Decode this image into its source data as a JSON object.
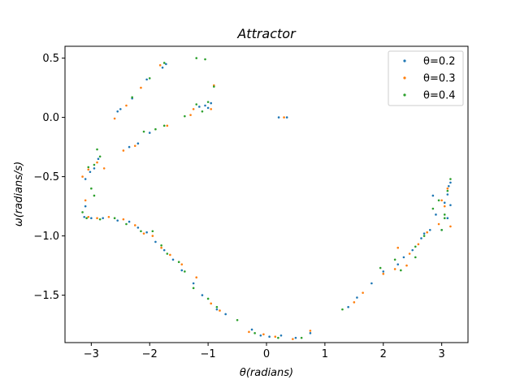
{
  "chart_data": {
    "type": "scatter",
    "title": "Attractor",
    "xlabel": "θ(radians)",
    "ylabel": "ω(radians/s)",
    "xlim": [
      -3.45,
      3.45
    ],
    "ylim": [
      -1.9,
      0.6
    ],
    "xticks": [
      -3,
      -2,
      -1,
      0,
      1,
      2,
      3
    ],
    "yticks": [
      0.5,
      0.0,
      -0.5,
      -1.0,
      -1.5
    ],
    "xtick_labels": [
      "−3",
      "−2",
      "−1",
      "0",
      "1",
      "2",
      "3"
    ],
    "ytick_labels": [
      "0.5",
      "0.0",
      "−0.5",
      "−1.0",
      "−1.5"
    ],
    "legend_position": "top-right",
    "series": [
      {
        "name": "θ=0.2",
        "color": "#1f77b4",
        "points": [
          [
            0.21,
            0.0
          ],
          [
            0.35,
            0.0
          ],
          [
            -2.55,
            0.05
          ],
          [
            -2.5,
            0.07
          ],
          [
            -2.3,
            0.16
          ],
          [
            -2.05,
            0.32
          ],
          [
            -1.78,
            0.42
          ],
          [
            -1.72,
            0.45
          ],
          [
            -1.15,
            0.09
          ],
          [
            -1.05,
            0.1
          ],
          [
            -0.95,
            0.12
          ],
          [
            -1.0,
            0.08
          ],
          [
            -2.0,
            -0.13
          ],
          [
            -2.2,
            -0.22
          ],
          [
            -2.35,
            -0.25
          ],
          [
            -3.1,
            -0.52
          ],
          [
            -3.02,
            -0.46
          ],
          [
            -2.95,
            -0.43
          ],
          [
            -2.88,
            -0.35
          ],
          [
            -3.1,
            -0.75
          ],
          [
            -3.12,
            -0.84
          ],
          [
            -3.0,
            -0.85
          ],
          [
            -2.8,
            -0.85
          ],
          [
            -2.55,
            -0.87
          ],
          [
            -2.35,
            -0.88
          ],
          [
            -2.2,
            -0.93
          ],
          [
            -2.05,
            -0.97
          ],
          [
            -1.9,
            -1.05
          ],
          [
            -1.75,
            -1.12
          ],
          [
            -1.6,
            -1.2
          ],
          [
            -1.45,
            -1.29
          ],
          [
            -1.25,
            -1.4
          ],
          [
            -1.1,
            -1.5
          ],
          [
            -0.85,
            -1.62
          ],
          [
            -0.7,
            -1.66
          ],
          [
            -0.25,
            -1.79
          ],
          [
            -0.1,
            -1.84
          ],
          [
            0.05,
            -1.85
          ],
          [
            0.25,
            -1.84
          ],
          [
            0.5,
            -1.86
          ],
          [
            0.75,
            -1.82
          ],
          [
            1.4,
            -1.6
          ],
          [
            1.55,
            -1.52
          ],
          [
            1.8,
            -1.4
          ],
          [
            2.0,
            -1.3
          ],
          [
            2.25,
            -1.24
          ],
          [
            2.35,
            -1.18
          ],
          [
            2.5,
            -1.12
          ],
          [
            2.65,
            -1.02
          ],
          [
            2.8,
            -0.95
          ],
          [
            2.9,
            -0.82
          ],
          [
            3.05,
            -0.72
          ],
          [
            3.1,
            -0.65
          ],
          [
            3.12,
            -0.58
          ],
          [
            3.15,
            -0.55
          ],
          [
            2.85,
            -0.66
          ],
          [
            3.15,
            -0.74
          ],
          [
            3.1,
            -0.85
          ],
          [
            3.0,
            -0.95
          ],
          [
            2.7,
            -0.98
          ]
        ]
      },
      {
        "name": "θ=0.3",
        "color": "#ff7f0e",
        "points": [
          [
            0.3,
            0.0
          ],
          [
            -2.6,
            -0.01
          ],
          [
            -2.4,
            0.1
          ],
          [
            -2.15,
            0.25
          ],
          [
            -1.82,
            0.44
          ],
          [
            -1.7,
            -0.07
          ],
          [
            -1.3,
            0.02
          ],
          [
            -0.95,
            0.07
          ],
          [
            -0.9,
            0.27
          ],
          [
            -1.25,
            0.07
          ],
          [
            -2.45,
            -0.28
          ],
          [
            -2.25,
            -0.24
          ],
          [
            -3.15,
            -0.5
          ],
          [
            -3.05,
            -0.44
          ],
          [
            -2.9,
            -0.38
          ],
          [
            -2.78,
            -0.43
          ],
          [
            -3.1,
            -0.7
          ],
          [
            -3.05,
            -0.84
          ],
          [
            -2.9,
            -0.85
          ],
          [
            -2.7,
            -0.84
          ],
          [
            -2.45,
            -0.86
          ],
          [
            -2.25,
            -0.91
          ],
          [
            -2.1,
            -0.98
          ],
          [
            -1.95,
            -1.0
          ],
          [
            -1.8,
            -1.1
          ],
          [
            -1.65,
            -1.16
          ],
          [
            -1.45,
            -1.24
          ],
          [
            -1.2,
            -1.35
          ],
          [
            -0.95,
            -1.57
          ],
          [
            -0.8,
            -1.63
          ],
          [
            -0.3,
            -1.81
          ],
          [
            -0.05,
            -1.83
          ],
          [
            0.15,
            -1.85
          ],
          [
            0.45,
            -1.87
          ],
          [
            0.75,
            -1.8
          ],
          [
            1.5,
            -1.56
          ],
          [
            1.65,
            -1.48
          ],
          [
            2.0,
            -1.32
          ],
          [
            2.2,
            -1.28
          ],
          [
            2.25,
            -1.1
          ],
          [
            2.45,
            -1.15
          ],
          [
            2.6,
            -1.07
          ],
          [
            2.75,
            -0.97
          ],
          [
            2.95,
            -0.9
          ],
          [
            3.0,
            -0.7
          ],
          [
            3.1,
            -0.6
          ],
          [
            3.15,
            -0.92
          ],
          [
            3.05,
            -0.75
          ],
          [
            2.4,
            -1.25
          ]
        ]
      },
      {
        "name": "θ=0.4",
        "color": "#2ca02c",
        "points": [
          [
            -1.2,
            0.5
          ],
          [
            -1.05,
            0.49
          ],
          [
            -2.3,
            0.17
          ],
          [
            -2.0,
            0.33
          ],
          [
            -1.75,
            0.46
          ],
          [
            -1.4,
            0.01
          ],
          [
            -1.2,
            0.11
          ],
          [
            -1.1,
            0.05
          ],
          [
            -1.0,
            0.13
          ],
          [
            -0.9,
            0.26
          ],
          [
            -2.1,
            -0.12
          ],
          [
            -1.9,
            -0.1
          ],
          [
            -1.75,
            -0.07
          ],
          [
            -2.9,
            -0.27
          ],
          [
            -3.05,
            -0.42
          ],
          [
            -2.95,
            -0.4
          ],
          [
            -2.85,
            -0.33
          ],
          [
            -3.0,
            -0.6
          ],
          [
            -2.95,
            -0.66
          ],
          [
            -3.15,
            -0.8
          ],
          [
            -3.08,
            -0.85
          ],
          [
            -2.85,
            -0.86
          ],
          [
            -2.6,
            -0.85
          ],
          [
            -2.4,
            -0.9
          ],
          [
            -2.15,
            -0.96
          ],
          [
            -1.95,
            -0.96
          ],
          [
            -1.8,
            -1.08
          ],
          [
            -1.7,
            -1.15
          ],
          [
            -1.5,
            -1.22
          ],
          [
            -1.4,
            -1.3
          ],
          [
            -1.25,
            -1.44
          ],
          [
            -1.0,
            -1.53
          ],
          [
            -0.85,
            -1.6
          ],
          [
            -0.5,
            -1.71
          ],
          [
            -0.2,
            -1.82
          ],
          [
            0.2,
            -1.86
          ],
          [
            0.6,
            -1.86
          ],
          [
            1.3,
            -1.62
          ],
          [
            1.95,
            -1.27
          ],
          [
            2.2,
            -1.2
          ],
          [
            2.3,
            -1.29
          ],
          [
            2.55,
            -1.09
          ],
          [
            2.7,
            -1.0
          ],
          [
            2.85,
            -0.77
          ],
          [
            3.0,
            -0.95
          ],
          [
            3.05,
            -0.82
          ],
          [
            3.1,
            -0.62
          ],
          [
            3.15,
            -0.52
          ],
          [
            2.95,
            -0.7
          ],
          [
            3.05,
            -0.85
          ],
          [
            2.55,
            -1.18
          ]
        ]
      }
    ]
  }
}
